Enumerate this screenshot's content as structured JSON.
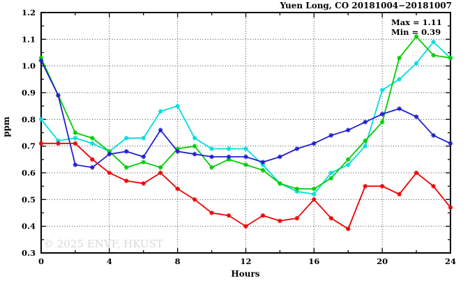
{
  "chart_data": {
    "type": "line",
    "title": "Yuen Long, CO 20181004−20181007",
    "annotations": {
      "max_label": "Max = 1.11",
      "min_label": "Min = 0.39"
    },
    "xlabel": "Hours",
    "ylabel": "ppm",
    "watermark": "© 2025 ENVF, HKUST",
    "xlim": [
      0,
      24
    ],
    "ylim": [
      0.3,
      1.2
    ],
    "x_major_ticks": [
      0,
      4,
      8,
      12,
      16,
      20,
      24
    ],
    "x_minor_ticks": [
      2,
      6,
      10,
      14,
      18,
      22
    ],
    "y_major_ticks": [
      0.3,
      0.4,
      0.5,
      0.6,
      0.7,
      0.8,
      0.9,
      1.0,
      1.1,
      1.2
    ],
    "y_tick_labels": [
      "0.3",
      "0.4",
      "0.5",
      "0.6",
      "0.7",
      "0.8",
      "0.9",
      "1.0",
      "1.1",
      "1.2"
    ],
    "y_minor_ticks": [
      0.35,
      0.45,
      0.55,
      0.65,
      0.75,
      0.85,
      0.95,
      1.05,
      1.15
    ],
    "grid_x": [
      4,
      8,
      12,
      16,
      20
    ],
    "grid_y": [
      0.4,
      0.5,
      0.6,
      0.7,
      0.8,
      0.9,
      1.0,
      1.1
    ],
    "grid_on": true,
    "legend": "none",
    "x": [
      0,
      1,
      2,
      3,
      4,
      5,
      6,
      7,
      8,
      9,
      10,
      11,
      12,
      13,
      14,
      15,
      16,
      17,
      18,
      19,
      20,
      21,
      22,
      23,
      24
    ],
    "series": [
      {
        "name": "cyan",
        "color": "#00dddd",
        "values": [
          0.8,
          0.72,
          0.73,
          0.71,
          0.68,
          0.73,
          0.73,
          0.83,
          0.85,
          0.73,
          0.69,
          0.69,
          0.69,
          0.63,
          0.56,
          0.53,
          0.52,
          0.6,
          0.63,
          0.7,
          0.91,
          0.95,
          1.01,
          1.09,
          1.03
        ]
      },
      {
        "name": "green",
        "color": "#00cc00",
        "values": [
          1.03,
          0.89,
          0.75,
          0.73,
          0.68,
          0.62,
          0.64,
          0.62,
          0.69,
          0.7,
          0.62,
          0.65,
          0.63,
          0.61,
          0.56,
          0.54,
          0.54,
          0.58,
          0.65,
          0.72,
          0.79,
          1.03,
          1.11,
          1.04,
          1.03
        ]
      },
      {
        "name": "blue",
        "color": "#2020d0",
        "values": [
          1.02,
          0.89,
          0.63,
          0.62,
          0.67,
          0.68,
          0.66,
          0.76,
          0.68,
          0.67,
          0.66,
          0.66,
          0.66,
          0.64,
          0.66,
          0.69,
          0.71,
          0.74,
          0.76,
          0.79,
          0.82,
          0.84,
          0.81,
          0.74,
          0.71
        ]
      },
      {
        "name": "red",
        "color": "#ee0000",
        "values": [
          0.71,
          0.71,
          0.71,
          0.65,
          0.6,
          0.57,
          0.56,
          0.6,
          0.54,
          0.5,
          0.45,
          0.44,
          0.4,
          0.44,
          0.42,
          0.43,
          0.5,
          0.43,
          0.39,
          0.55,
          0.55,
          0.52,
          0.6,
          0.55,
          0.47
        ]
      }
    ]
  }
}
